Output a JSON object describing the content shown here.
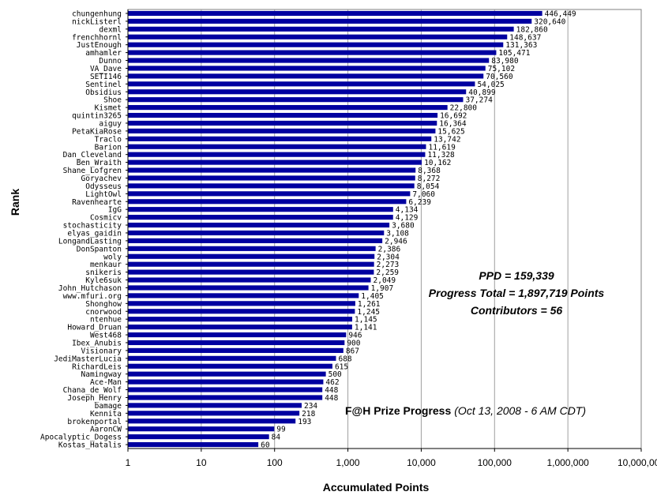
{
  "chart_data": {
    "type": "bar",
    "orientation": "horizontal",
    "xscale": "log",
    "xlim": [
      1,
      10000000
    ],
    "xlabel": "Accumulated Points",
    "ylabel": "Rank",
    "xticks": [
      "1",
      "10",
      "100",
      "1,000",
      "10,000",
      "100,000",
      "1,000,000",
      "10,000,000"
    ],
    "bar_color": "#0000a0",
    "grid": "vertical",
    "categories": [
      "chungenhung",
      "nickListerl",
      "dexml",
      "frenchhornl",
      "JustEnough",
      "amhamler",
      "Dunno",
      "VA_Dave",
      "SETI146",
      "Sentinel",
      "Obsidius",
      "Shoe",
      "Kismet",
      "quintin3265",
      "aiguy",
      "PetaKiaRose",
      "Traclo",
      "Barion",
      "Dan_Cleveland",
      "Ben_Wraith",
      "Shane_Lofgren",
      "Goryachev",
      "Odysseus",
      "LightOwl",
      "Ravenhearte",
      "IgG",
      "Cosmicv",
      "stochasticity",
      "elyas_gaidin",
      "LongandLasting",
      "DonSpanton",
      "woly",
      "menkaur",
      "snikeris",
      "Kyle6suk",
      "John_Hutchason",
      "www.mfuri.org",
      "Shonghow",
      "cnorwood",
      "ntenhue",
      "Howard_Druan",
      "West468",
      "Ibex_Anubis",
      "Visionary",
      "JediMasterLucia",
      "RichardLeis",
      "Namingway",
      "Ace-Man",
      "Chana_de_Wolf",
      "Joseph_Henry",
      "bamage",
      "Kennita",
      "brokenportal",
      "AaronCW",
      "Apocalyptic_Dogess",
      "Kostas_Hatalis"
    ],
    "values": [
      446449,
      320640,
      182860,
      148637,
      131363,
      105471,
      83980,
      75102,
      70560,
      54025,
      40899,
      37274,
      22800,
      16692,
      16364,
      15625,
      13742,
      11619,
      11328,
      10162,
      8368,
      8272,
      8054,
      7060,
      6239,
      4134,
      4129,
      3680,
      3108,
      2946,
      2386,
      2304,
      2273,
      2259,
      2049,
      1907,
      1405,
      1261,
      1245,
      1145,
      1141,
      946,
      900,
      867,
      688,
      615,
      500,
      462,
      448,
      448,
      234,
      218,
      193,
      99,
      84,
      60
    ],
    "value_labels": [
      "446,449",
      "320,640",
      "182,860",
      "148,637",
      "131,363",
      "105,471",
      "83,980",
      "75,102",
      "70,560",
      "54,025",
      "40,899",
      "37,274",
      "22,800",
      "16,692",
      "16,364",
      "15,625",
      "13,742",
      "11,619",
      "11,328",
      "10,162",
      "8,368",
      "8,272",
      "8,054",
      "7,060",
      "6,239",
      "4,134",
      "4,129",
      "3,680",
      "3,108",
      "2,946",
      "2,386",
      "2,304",
      "2,273",
      "2,259",
      "2,049",
      "1,907",
      "1,405",
      "1,261",
      "1,245",
      "1,145",
      "1,141",
      "946",
      "900",
      "867",
      "688",
      "615",
      "500",
      "462",
      "448",
      "448",
      "234",
      "218",
      "193",
      "99",
      "84",
      "60"
    ],
    "annotations": {
      "ppd": "PPD = 159,339",
      "progress_total": "Progress Total = 1,897,719 Points",
      "contributors": "Contributors = 56",
      "caption_title": "F@H Prize Progress",
      "caption_date": "(Oct 13, 2008 - 6 AM CDT)"
    }
  }
}
